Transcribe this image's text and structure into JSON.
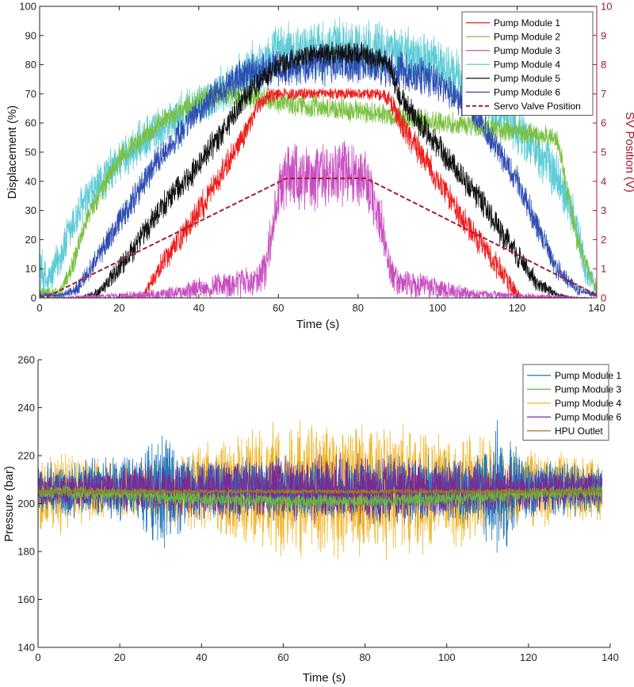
{
  "chart_data": [
    {
      "type": "line",
      "title": "",
      "xlabel": "Time (s)",
      "ylabel": "Displacement (%)",
      "y2label": "SV Position (V)",
      "xlim": [
        0,
        140
      ],
      "ylim": [
        0,
        100
      ],
      "y2lim": [
        0,
        10
      ],
      "xticks": [
        "0",
        "20",
        "40",
        "60",
        "80",
        "100",
        "120",
        "140"
      ],
      "yticks": [
        "0",
        "10",
        "20",
        "30",
        "40",
        "50",
        "60",
        "70",
        "80",
        "90",
        "100"
      ],
      "y2ticks": [
        "0",
        "1",
        "2",
        "3",
        "4",
        "5",
        "6",
        "7",
        "8",
        "9",
        "10"
      ],
      "legend_position": "top-right",
      "series": [
        {
          "name": "Pump Module 4",
          "color": "#5ccbd6",
          "style": "noisy-band",
          "x": [
            0,
            2,
            6,
            10,
            20,
            30,
            40,
            50,
            55,
            60,
            70,
            80,
            90,
            100,
            110,
            120,
            130,
            135,
            137,
            140
          ],
          "center": [
            10,
            5,
            17,
            30,
            47,
            58,
            66,
            74,
            80,
            84,
            86,
            86,
            84,
            80,
            71,
            58,
            42,
            25,
            10,
            3
          ],
          "half_width": [
            10,
            6,
            8,
            8,
            8,
            8,
            8,
            9,
            10,
            10,
            10,
            10,
            10,
            10,
            9,
            9,
            9,
            8,
            6,
            3
          ]
        },
        {
          "name": "Pump Module 2",
          "color": "#7ac142",
          "style": "noisy-band",
          "x": [
            0,
            5,
            8,
            12,
            20,
            30,
            40,
            45,
            130,
            135,
            140
          ],
          "center": [
            2,
            2,
            10,
            28,
            48,
            60,
            68,
            70,
            55,
            20,
            2
          ],
          "half_width": [
            2,
            2,
            4,
            4,
            4,
            4,
            4,
            4,
            4,
            4,
            2
          ]
        },
        {
          "name": "Pump Module 6",
          "color": "#2e4db1",
          "style": "noisy-band",
          "x": [
            0,
            6,
            10,
            20,
            30,
            40,
            47,
            50,
            60,
            70,
            80,
            90,
            100,
            110,
            120,
            125,
            130,
            135,
            140
          ],
          "center": [
            1,
            1,
            4,
            26,
            48,
            64,
            73,
            76,
            79,
            80,
            80,
            78,
            74,
            62,
            40,
            25,
            10,
            3,
            1
          ],
          "half_width": [
            1,
            1,
            3,
            5,
            5,
            5,
            6,
            7,
            7,
            7,
            7,
            7,
            6,
            5,
            5,
            5,
            4,
            2,
            1
          ]
        },
        {
          "name": "Pump Module 5",
          "color": "#111111",
          "style": "noisy-band",
          "x": [
            0,
            10,
            15,
            20,
            30,
            40,
            50,
            53,
            60,
            70,
            80,
            88,
            90,
            100,
            110,
            120,
            125,
            130,
            135,
            140
          ],
          "center": [
            0,
            0,
            2,
            10,
            30,
            46,
            65,
            71,
            80,
            84,
            84,
            80,
            70,
            52,
            35,
            15,
            5,
            1,
            0,
            0
          ],
          "half_width": [
            0,
            0,
            2,
            4,
            5,
            5,
            5,
            5,
            4,
            4,
            4,
            4,
            5,
            5,
            5,
            5,
            3,
            1,
            0,
            0
          ]
        },
        {
          "name": "Pump Module 1",
          "color": "#ee1c1c",
          "style": "noisy-band",
          "x": [
            0,
            20,
            26,
            30,
            40,
            50,
            55,
            57,
            60,
            85,
            88,
            90,
            100,
            110,
            118,
            121,
            140
          ],
          "center": [
            0,
            0,
            1,
            10,
            30,
            52,
            66,
            69,
            70,
            70,
            68,
            62,
            40,
            20,
            5,
            0,
            0
          ],
          "half_width": [
            0,
            0,
            1,
            4,
            5,
            5,
            3,
            3,
            2,
            2,
            3,
            5,
            5,
            5,
            4,
            1,
            0
          ]
        },
        {
          "name": "Pump Module 3",
          "color": "#c84ec0",
          "style": "noisy-band",
          "x": [
            0,
            30,
            40,
            50,
            55,
            57,
            60,
            62,
            80,
            82,
            86,
            88,
            90,
            100,
            110,
            140
          ],
          "center": [
            0,
            1,
            3,
            5,
            6,
            12,
            35,
            42,
            42,
            40,
            25,
            10,
            5,
            3,
            1,
            0
          ],
          "half_width": [
            0,
            2,
            4,
            5,
            5,
            8,
            10,
            12,
            12,
            10,
            8,
            6,
            5,
            4,
            2,
            0
          ]
        },
        {
          "name": "Servo Valve Position",
          "color": "#a6192e",
          "style": "dashed",
          "axis": "right",
          "x": [
            0,
            2,
            62,
            82,
            140
          ],
          "values": [
            0.05,
            0.05,
            4.1,
            4.1,
            0.1
          ]
        }
      ],
      "legend": [
        "Pump Module 1",
        "Pump Module 2",
        "Pump Module 3",
        "Pump Module 4",
        "Pump Module 5",
        "Pump Module 6",
        "Servo Valve Position"
      ]
    },
    {
      "type": "line",
      "title": "",
      "xlabel": "Time (s)",
      "ylabel": "Pressure (bar)",
      "xlim": [
        0,
        140
      ],
      "ylim": [
        140,
        260
      ],
      "xticks": [
        "0",
        "20",
        "40",
        "60",
        "80",
        "100",
        "120",
        "140"
      ],
      "yticks": [
        "140",
        "160",
        "180",
        "200",
        "220",
        "240",
        "260"
      ],
      "legend_position": "top-right",
      "series": [
        {
          "name": "Pump Module 4",
          "color": "#f0b323",
          "style": "noisy-band",
          "x": [
            0,
            2,
            5,
            10,
            20,
            30,
            40,
            50,
            58,
            70,
            80,
            90,
            100,
            110,
            120,
            130,
            136,
            138
          ],
          "center": [
            206,
            206,
            206,
            206,
            206,
            206,
            206,
            206,
            206,
            206,
            206,
            206,
            206,
            206,
            206,
            206,
            206,
            206
          ],
          "half_width": [
            22,
            14,
            18,
            14,
            12,
            14,
            18,
            24,
            30,
            28,
            28,
            26,
            24,
            20,
            16,
            14,
            14,
            20
          ]
        },
        {
          "name": "Pump Module 1",
          "color": "#1f77c4",
          "style": "noisy-band",
          "x": [
            0,
            10,
            25,
            28,
            31,
            34,
            40,
            105,
            110,
            113,
            116,
            120,
            138
          ],
          "center": [
            206,
            206,
            206,
            206,
            206,
            206,
            206,
            206,
            206,
            206,
            206,
            206,
            206
          ],
          "half_width": [
            10,
            12,
            14,
            22,
            30,
            20,
            12,
            14,
            22,
            30,
            20,
            12,
            10
          ]
        },
        {
          "name": "Pump Module 6",
          "color": "#7b2a91",
          "style": "noisy-band",
          "x": [
            0,
            10,
            20,
            40,
            60,
            80,
            100,
            120,
            138
          ],
          "center": [
            206,
            206,
            206,
            206,
            206,
            206,
            206,
            206,
            206
          ],
          "half_width": [
            7,
            8,
            9,
            12,
            14,
            14,
            12,
            9,
            7
          ]
        },
        {
          "name": "Pump Module 3",
          "color": "#6ab544",
          "style": "noisy-band",
          "x": [
            0,
            20,
            40,
            60,
            80,
            100,
            120,
            138
          ],
          "center": [
            205,
            204,
            202,
            201,
            201,
            202,
            204,
            205
          ],
          "half_width": [
            3,
            3,
            3,
            3,
            3,
            3,
            3,
            3
          ]
        },
        {
          "name": "HPU Outlet",
          "color": "#a07a1a",
          "style": "noisy-band",
          "x": [
            0,
            138
          ],
          "center": [
            205,
            205
          ],
          "half_width": [
            1,
            1
          ]
        }
      ],
      "legend": [
        "Pump Module 1",
        "Pump Module 3",
        "Pump Module 4",
        "Pump Module 6",
        "HPU Outlet"
      ]
    }
  ]
}
